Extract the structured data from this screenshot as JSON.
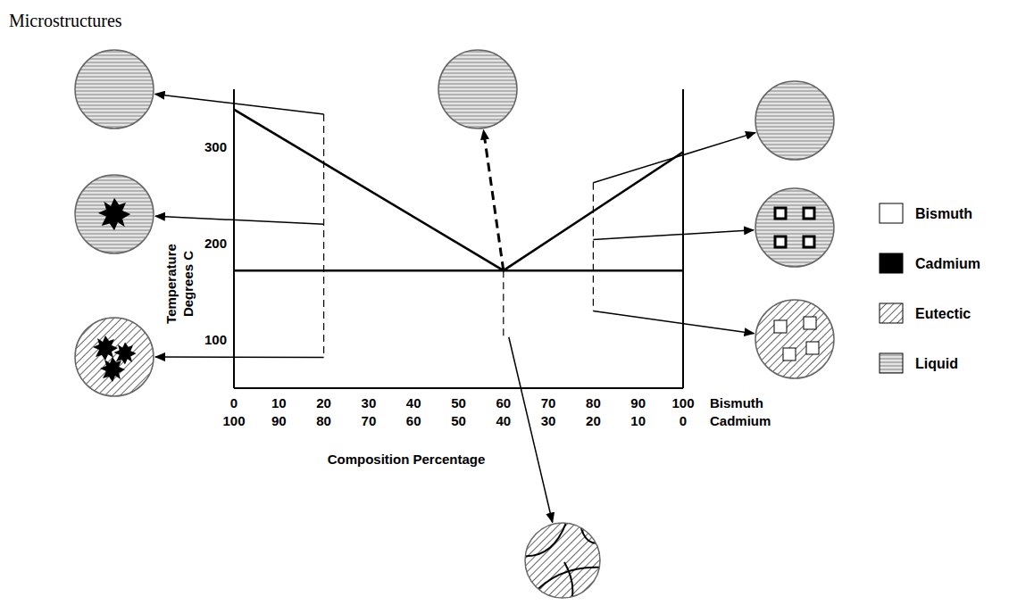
{
  "title": "Microstructures",
  "chart_data": {
    "type": "line",
    "x_label": "Composition Percentage",
    "y_label": "Temperature Degrees C",
    "xlim": [
      0,
      100
    ],
    "xticks": [
      0,
      10,
      20,
      30,
      40,
      50,
      60,
      70,
      80,
      90,
      100
    ],
    "xticks2": [
      100,
      90,
      80,
      70,
      60,
      50,
      40,
      30,
      20,
      10,
      0
    ],
    "xtick_names": [
      "Bismuth",
      "Cadmium"
    ],
    "ylim": [
      50,
      360
    ],
    "yticks": [
      100,
      200,
      300
    ],
    "series": [
      {
        "x": [
          0,
          60,
          100
        ],
        "values": [
          339,
          172,
          295
        ],
        "color": "#000000"
      },
      {
        "x": [
          0,
          100
        ],
        "values": [
          172,
          172
        ],
        "color": "#000000"
      }
    ],
    "guides": [
      {
        "x": 20,
        "values": [
          334,
          82
        ],
        "line_style": "dashed"
      },
      {
        "x": 60,
        "values": [
          172,
          103
        ],
        "line_style": "dashed"
      },
      {
        "x": 80,
        "values": [
          263,
          130
        ],
        "line_style": "dashed"
      }
    ],
    "legend": "right",
    "phases": [
      {
        "name": "Bismuth",
        "color": "#ffffff",
        "marker": "square"
      },
      {
        "name": "Cadmium",
        "color": "#000000",
        "marker": "blob"
      },
      {
        "name": "Eutectic",
        "color": "#000000",
        "line_style": "hatched"
      },
      {
        "name": "Liquid",
        "color": "#808080",
        "line_style": "horizontal"
      }
    ],
    "microstructures": [
      {
        "x": 20,
        "y": 334,
        "phases": [
          "Liquid"
        ]
      },
      {
        "x": 20,
        "y": 220,
        "phases": [
          "Liquid",
          "Cadmium"
        ]
      },
      {
        "x": 20,
        "y": 82,
        "phases": [
          "Eutectic",
          "Cadmium"
        ]
      },
      {
        "x": 60,
        "y": 172,
        "phases": [
          "Liquid"
        ],
        "line_style": "dashed"
      },
      {
        "x": 60,
        "y": 103,
        "phases": [
          "Eutectic"
        ]
      },
      {
        "x": 80,
        "y": 263,
        "phases": [
          "Liquid"
        ]
      },
      {
        "x": 80,
        "y": 204,
        "phases": [
          "Liquid",
          "Bismuth"
        ]
      },
      {
        "x": 80,
        "y": 130,
        "phases": [
          "Eutectic",
          "Bismuth"
        ]
      }
    ]
  }
}
